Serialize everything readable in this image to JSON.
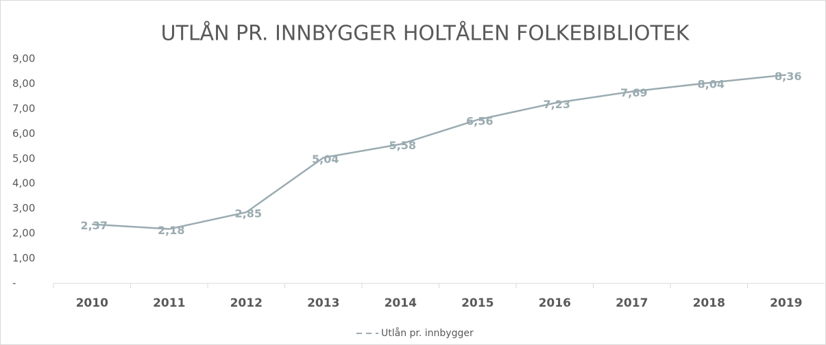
{
  "chart_data": {
    "type": "line",
    "title": "UTLÅN PR. INNBYGGER HOLTÅLEN FOLKEBIBLIOTEK",
    "categories": [
      "2010",
      "2011",
      "2012",
      "2013",
      "2014",
      "2015",
      "2016",
      "2017",
      "2018",
      "2019"
    ],
    "series": [
      {
        "name": "Utlån pr. innbygger",
        "color": "#9aabb1",
        "values": [
          2.37,
          2.18,
          2.85,
          5.04,
          5.58,
          6.56,
          7.23,
          7.69,
          8.04,
          8.36
        ],
        "value_labels": [
          "2,37",
          "2,18",
          "2,85",
          "5,04",
          "5,58",
          "6,56",
          "7,23",
          "7,69",
          "8,04",
          "8,36"
        ]
      }
    ],
    "ylim": [
      0,
      9
    ],
    "yticks": [
      {
        "value": 0,
        "label": "-"
      },
      {
        "value": 1,
        "label": "1,00"
      },
      {
        "value": 2,
        "label": "2,00"
      },
      {
        "value": 3,
        "label": "3,00"
      },
      {
        "value": 4,
        "label": "4,00"
      },
      {
        "value": 5,
        "label": "5,00"
      },
      {
        "value": 6,
        "label": "6,00"
      },
      {
        "value": 7,
        "label": "7,00"
      },
      {
        "value": 8,
        "label": "8,00"
      },
      {
        "value": 9,
        "label": "9,00"
      }
    ],
    "grid": false,
    "legend": "bottom"
  }
}
